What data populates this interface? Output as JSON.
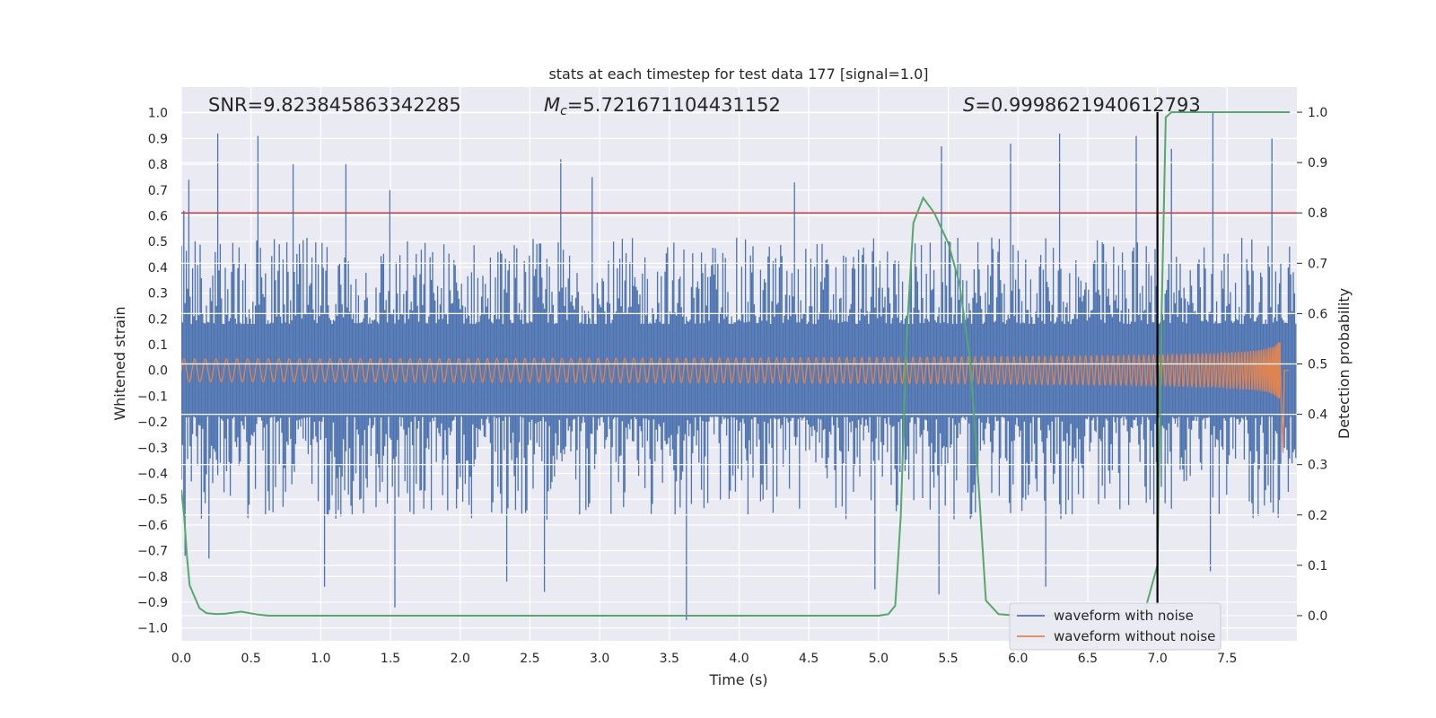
{
  "chart_data": {
    "type": "line",
    "title": "stats at each timestep for test data 177 [signal=1.0]",
    "xlabel": "Time (s)",
    "ylabel": "Whitened strain",
    "y2label": "Detection probability",
    "xlim": [
      0,
      8.0
    ],
    "ylim": [
      -1.05,
      1.1
    ],
    "y2lim": [
      -0.05,
      1.05
    ],
    "xticks": [
      0.0,
      0.5,
      1.0,
      1.5,
      2.0,
      2.5,
      3.0,
      3.5,
      4.0,
      4.5,
      5.0,
      5.5,
      6.0,
      6.5,
      7.0,
      7.5
    ],
    "xtick_labels": [
      "0.0",
      "0.5",
      "1.0",
      "1.5",
      "2.0",
      "2.5",
      "3.0",
      "3.5",
      "4.0",
      "4.5",
      "5.0",
      "5.5",
      "6.0",
      "6.5",
      "7.0",
      "7.5"
    ],
    "yticks": [
      1.0,
      0.9,
      0.8,
      0.7,
      0.6,
      0.5,
      0.4,
      0.3,
      0.2,
      0.1,
      0.0,
      -0.1,
      -0.2,
      -0.3,
      -0.4,
      -0.5,
      -0.6,
      -0.7,
      -0.8,
      -0.9,
      -1.0
    ],
    "ytick_labels": [
      "1.0",
      "0.9",
      "0.8",
      "0.7",
      "0.6",
      "0.5",
      "0.4",
      "0.3",
      "0.2",
      "0.1",
      "0.0",
      "−0.1",
      "−0.2",
      "−0.3",
      "−0.4",
      "−0.5",
      "−0.6",
      "−0.7",
      "−0.8",
      "−0.9",
      "−1.0"
    ],
    "y2ticks": [
      1.0,
      0.9,
      0.8,
      0.7,
      0.6,
      0.5,
      0.4,
      0.3,
      0.2,
      0.1,
      0.0
    ],
    "y2tick_labels": [
      "1.0",
      "0.9",
      "0.8",
      "0.7",
      "0.6",
      "0.5",
      "0.4",
      "0.3",
      "0.2",
      "0.1",
      "0.0"
    ],
    "annotations": {
      "snr": "SNR=9.823845863342285",
      "mc_symbol": "M",
      "mc_sub": "c",
      "mc_value": "=5.721671104431152",
      "s_symbol": "S",
      "s_value": "=0.9998621940612793"
    },
    "threshold": {
      "value": 0.8,
      "color": "#c03d3e"
    },
    "marker_time": 7.0,
    "series": [
      {
        "name": "waveform with noise",
        "color": "#4c72b0",
        "axis": "left",
        "envelope": {
          "t_end": 8.0,
          "typical_max": 0.45,
          "typical_min": -0.5
        },
        "peaks": [
          [
            0.02,
            0.62
          ],
          [
            0.05,
            0.74
          ],
          [
            0.26,
            0.92
          ],
          [
            0.55,
            0.91
          ],
          [
            0.8,
            0.8
          ],
          [
            1.18,
            0.8
          ],
          [
            1.5,
            0.7
          ],
          [
            2.72,
            0.82
          ],
          [
            2.95,
            0.75
          ],
          [
            4.4,
            0.73
          ],
          [
            5.45,
            0.87
          ],
          [
            5.95,
            0.88
          ],
          [
            6.3,
            0.92
          ],
          [
            6.85,
            0.91
          ],
          [
            7.1,
            0.86
          ],
          [
            7.4,
            1.0
          ],
          [
            7.82,
            0.9
          ]
        ],
        "troughs": [
          [
            0.03,
            -0.72
          ],
          [
            0.2,
            -0.73
          ],
          [
            1.03,
            -0.84
          ],
          [
            1.53,
            -0.92
          ],
          [
            2.33,
            -0.82
          ],
          [
            2.6,
            -0.86
          ],
          [
            3.62,
            -0.97
          ],
          [
            4.97,
            -0.85
          ],
          [
            5.43,
            -0.87
          ],
          [
            6.2,
            -0.84
          ],
          [
            7.38,
            -0.78
          ]
        ]
      },
      {
        "name": "waveform without noise",
        "color": "#dd8452",
        "axis": "left",
        "amp_start": 0.022,
        "amp_end": 0.26,
        "t_merger": 7.88
      },
      {
        "name": "detection probability",
        "color": "#55a868",
        "axis": "right",
        "x": [
          0.0,
          0.02,
          0.04,
          0.06,
          0.13,
          0.18,
          0.25,
          0.32,
          0.43,
          0.55,
          0.63,
          1.0,
          2.0,
          3.0,
          4.0,
          5.0,
          5.07,
          5.12,
          5.16,
          5.2,
          5.25,
          5.32,
          5.4,
          5.5,
          5.58,
          5.66,
          5.72,
          5.77,
          5.86,
          6.0,
          6.3,
          6.6,
          6.9,
          7.0,
          7.03,
          7.06,
          7.1,
          7.2,
          7.5,
          7.95
        ],
        "y": [
          0.25,
          0.2,
          0.12,
          0.06,
          0.015,
          0.005,
          0.003,
          0.004,
          0.008,
          0.002,
          0.0,
          0.0,
          0.0,
          0.0,
          0.0,
          0.0,
          0.003,
          0.02,
          0.2,
          0.55,
          0.78,
          0.83,
          0.8,
          0.74,
          0.66,
          0.5,
          0.25,
          0.03,
          0.003,
          0.0,
          0.0,
          0.0,
          0.0,
          0.1,
          0.6,
          0.99,
          1.0,
          1.0,
          1.0,
          1.0
        ]
      }
    ],
    "legend": {
      "position": "lower-right",
      "entries": [
        {
          "label": "waveform with noise",
          "color": "#4c72b0"
        },
        {
          "label": "waveform without noise",
          "color": "#dd8452"
        }
      ]
    }
  }
}
